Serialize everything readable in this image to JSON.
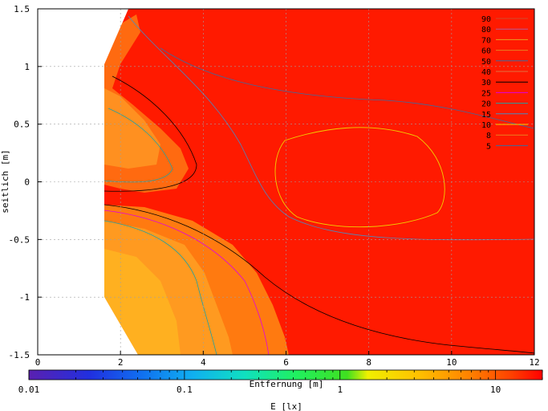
{
  "chart_data": {
    "type": "heatmap",
    "xlabel": "Entfernung [m]",
    "ylabel": "seitlich [m]",
    "colorbar_label": "E [lx]",
    "xlim": [
      0,
      12
    ],
    "ylim": [
      -1.5,
      1.5
    ],
    "x_ticks": [
      "0",
      "2",
      "4",
      "6",
      "8",
      "10",
      "12"
    ],
    "x_tick_values": [
      0,
      2,
      4,
      6,
      8,
      10,
      12
    ],
    "y_ticks": [
      "1.5",
      "1",
      "0.5",
      "0",
      "-0.5",
      "-1",
      "-1.5"
    ],
    "y_tick_values": [
      1.5,
      1,
      0.5,
      0,
      -0.5,
      -1,
      -1.5
    ],
    "colorbar_scale": "log",
    "colorbar_range": [
      0.01,
      20
    ],
    "colorbar_ticks": [
      "0.01",
      "0.1",
      "1",
      "10"
    ],
    "colorbar_tick_values": [
      0.01,
      0.1,
      1,
      10
    ],
    "contour_levels": [
      {
        "label": "90",
        "color": "#d04a2a"
      },
      {
        "label": "80",
        "color": "#b05a9a"
      },
      {
        "label": "70",
        "color": "#e8a020"
      },
      {
        "label": "60",
        "color": "#e88020"
      },
      {
        "label": "50",
        "color": "#3a6aa0"
      },
      {
        "label": "40",
        "color": "#e07040"
      },
      {
        "label": "30",
        "color": "#000000"
      },
      {
        "label": "25",
        "color": "#e000e0"
      },
      {
        "label": "20",
        "color": "#20a0a0"
      },
      {
        "label": "15",
        "color": "#4a8ac0"
      },
      {
        "label": "10",
        "color": "#f0d000"
      },
      {
        "label": "8",
        "color": "#e88020"
      },
      {
        "label": "5",
        "color": "#3a6aa0"
      }
    ],
    "grid": true,
    "legend_position": "top-right"
  }
}
